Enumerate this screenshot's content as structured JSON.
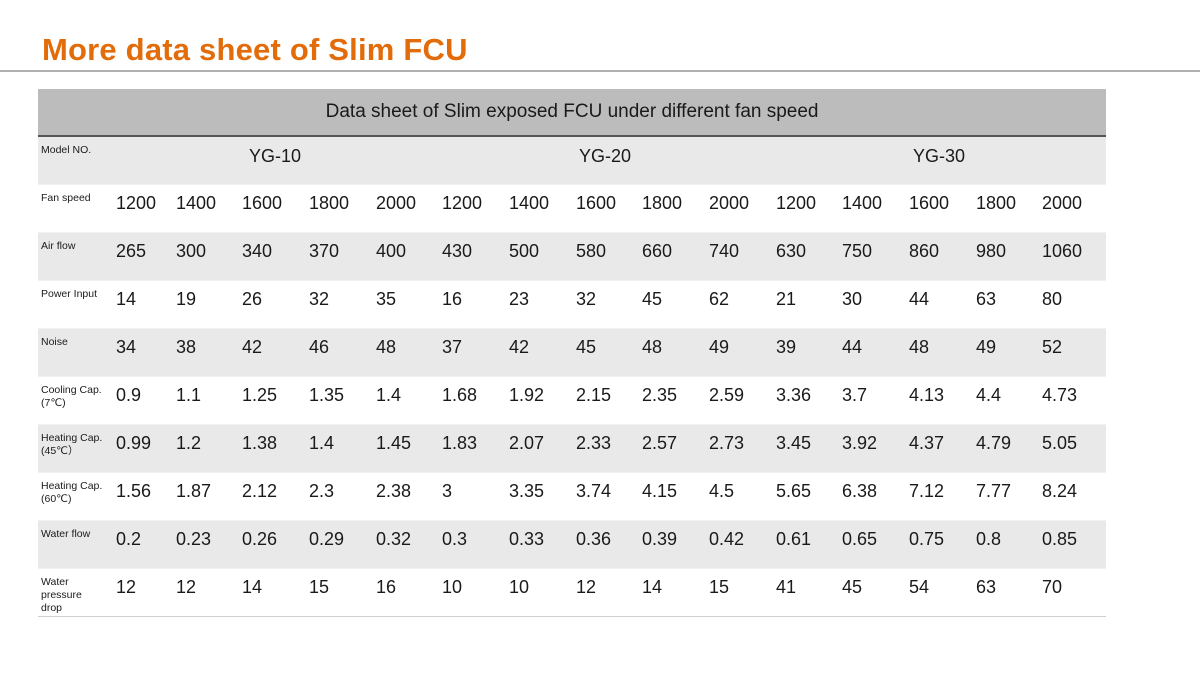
{
  "slide": {
    "title": "More data sheet of Slim FCU"
  },
  "table": {
    "caption": "Data sheet of Slim exposed FCU under different fan speed",
    "model_label": "Model NO.",
    "models": [
      "YG-10",
      "YG-20",
      "YG-30"
    ],
    "rows": [
      {
        "label_lines": [
          "Fan speed"
        ],
        "values": [
          "1200",
          "1400",
          "1600",
          "1800",
          "2000",
          "1200",
          "1400",
          "1600",
          "1800",
          "2000",
          "1200",
          "1400",
          "1600",
          "1800",
          "2000"
        ]
      },
      {
        "label_lines": [
          "Air flow"
        ],
        "values": [
          "265",
          "300",
          "340",
          "370",
          "400",
          "430",
          "500",
          "580",
          "660",
          "740",
          "630",
          "750",
          "860",
          "980",
          "1060"
        ]
      },
      {
        "label_lines": [
          "Power Input"
        ],
        "values": [
          "14",
          "19",
          "26",
          "32",
          "35",
          "16",
          "23",
          "32",
          "45",
          "62",
          "21",
          "30",
          "44",
          "63",
          "80"
        ]
      },
      {
        "label_lines": [
          "Noise"
        ],
        "values": [
          "34",
          "38",
          "42",
          "46",
          "48",
          "37",
          "42",
          "45",
          "48",
          "49",
          "39",
          "44",
          "48",
          "49",
          "52"
        ]
      },
      {
        "label_lines": [
          "Cooling Cap.",
          "(7℃)"
        ],
        "values": [
          "0.9",
          "1.1",
          "1.25",
          "1.35",
          "1.4",
          "1.68",
          "1.92",
          "2.15",
          "2.35",
          "2.59",
          "3.36",
          "3.7",
          "4.13",
          "4.4",
          "4.73"
        ]
      },
      {
        "label_lines": [
          "Heating Cap.",
          "(45℃）"
        ],
        "values": [
          "0.99",
          "1.2",
          "1.38",
          "1.4",
          "1.45",
          "1.83",
          "2.07",
          "2.33",
          "2.57",
          "2.73",
          "3.45",
          "3.92",
          "4.37",
          "4.79",
          "5.05"
        ]
      },
      {
        "label_lines": [
          "Heating Cap.",
          "(60℃)"
        ],
        "values": [
          "1.56",
          "1.87",
          "2.12",
          "2.3",
          "2.38",
          "3",
          "3.35",
          "3.74",
          "4.15",
          "4.5",
          "5.65",
          "6.38",
          "7.12",
          "7.77",
          "8.24"
        ]
      },
      {
        "label_lines": [
          "Water flow"
        ],
        "values": [
          "0.2",
          "0.23",
          "0.26",
          "0.29",
          "0.32",
          "0.3",
          "0.33",
          "0.36",
          "0.39",
          "0.42",
          "0.61",
          "0.65",
          "0.75",
          "0.8",
          "0.85"
        ]
      },
      {
        "label_lines": [
          "Water",
          "pressure",
          "drop"
        ],
        "values": [
          "12",
          "12",
          "14",
          "15",
          "16",
          "10",
          "10",
          "12",
          "14",
          "15",
          "41",
          "45",
          "54",
          "63",
          "70"
        ]
      }
    ]
  },
  "colors": {
    "title_accent": "#e36c0a",
    "caption_background": "#bcbcbc",
    "striped_row": "#e9e9e9"
  }
}
